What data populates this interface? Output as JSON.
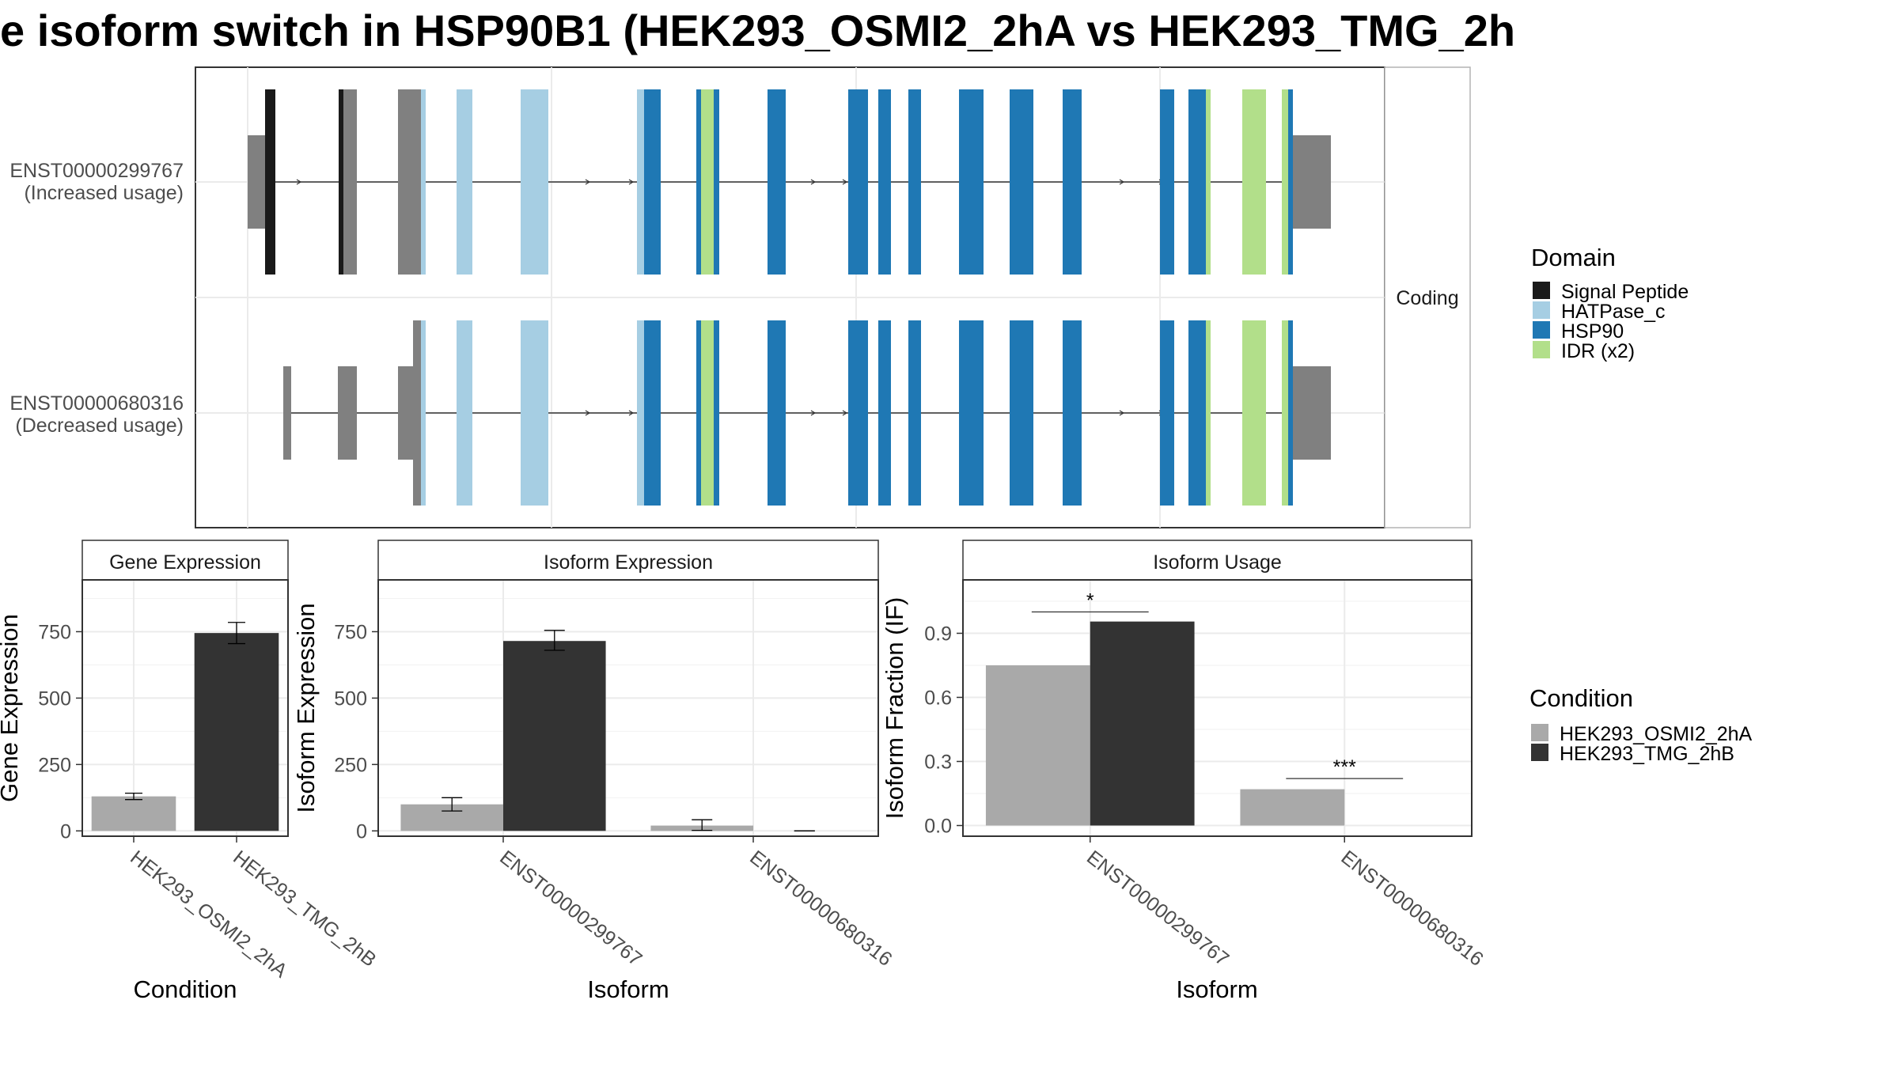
{
  "title": "e isoform switch in HSP90B1 (HEK293_OSMI2_2hA vs HEK293_TMG_2h",
  "colors": {
    "signal_peptide": "#1a1a1a",
    "hatpase_c": "#a6cee3",
    "hsp90": "#1f78b4",
    "idr": "#b2df8a",
    "utr": "#808080",
    "osmi2": "#a9a9a9",
    "tmg": "#333333"
  },
  "structure": {
    "facet_label": "Coding",
    "isoforms": [
      {
        "id": "ENST00000299767",
        "usage": "(Increased usage)"
      },
      {
        "id": "ENST00000680316",
        "usage": "(Decreased usage)"
      }
    ]
  },
  "legends": {
    "domain": {
      "title": "Domain",
      "items": [
        {
          "label": "Signal Peptide",
          "color": "#1a1a1a"
        },
        {
          "label": "HATPase_c",
          "color": "#a6cee3"
        },
        {
          "label": "HSP90",
          "color": "#1f78b4"
        },
        {
          "label": "IDR (x2)",
          "color": "#b2df8a"
        }
      ]
    },
    "condition": {
      "title": "Condition",
      "items": [
        {
          "label": "HEK293_OSMI2_2hA",
          "color": "#a9a9a9"
        },
        {
          "label": "HEK293_TMG_2hB",
          "color": "#333333"
        }
      ]
    }
  },
  "chart_data": [
    {
      "type": "bar",
      "strip": "Gene Expression",
      "xlabel": "Condition",
      "ylabel": "Gene Expression",
      "categories": [
        "HEK293_OSMI2_2hA",
        "HEK293_TMG_2hB"
      ],
      "values": [
        130,
        745
      ],
      "errors": [
        [
          118,
          142
        ],
        [
          705,
          785
        ]
      ],
      "ylim": [
        -20,
        945
      ],
      "yticks": [
        0,
        250,
        500,
        750
      ]
    },
    {
      "type": "bar",
      "strip": "Isoform Expression",
      "xlabel": "Isoform",
      "ylabel": "Isoform Expression",
      "categories": [
        "ENST00000299767",
        "ENST00000680316"
      ],
      "series": [
        {
          "name": "HEK293_OSMI2_2hA",
          "values": [
            100,
            20
          ],
          "errors": [
            [
              75,
              125
            ],
            [
              2,
              42
            ]
          ]
        },
        {
          "name": "HEK293_TMG_2hB",
          "values": [
            715,
            0
          ],
          "errors": [
            [
              680,
              755
            ],
            [
              0,
              0
            ]
          ]
        }
      ],
      "ylim": [
        -20,
        945
      ],
      "yticks": [
        0,
        250,
        500,
        750
      ]
    },
    {
      "type": "bar",
      "strip": "Isoform Usage",
      "xlabel": "Isoform",
      "ylabel": "Isoform Fraction (IF)",
      "categories": [
        "ENST00000299767",
        "ENST00000680316"
      ],
      "series": [
        {
          "name": "HEK293_OSMI2_2hA",
          "values": [
            0.75,
            0.17
          ]
        },
        {
          "name": "HEK293_TMG_2hB",
          "values": [
            0.955,
            0.0
          ]
        }
      ],
      "significance": [
        {
          "category": "ENST00000299767",
          "label": "*",
          "y": 1.0
        },
        {
          "category": "ENST00000680316",
          "label": "***",
          "y": 0.22
        }
      ],
      "ylim": [
        -0.05,
        1.15
      ],
      "yticks": [
        "0.0",
        "0.3",
        "0.6",
        "0.9"
      ]
    }
  ]
}
